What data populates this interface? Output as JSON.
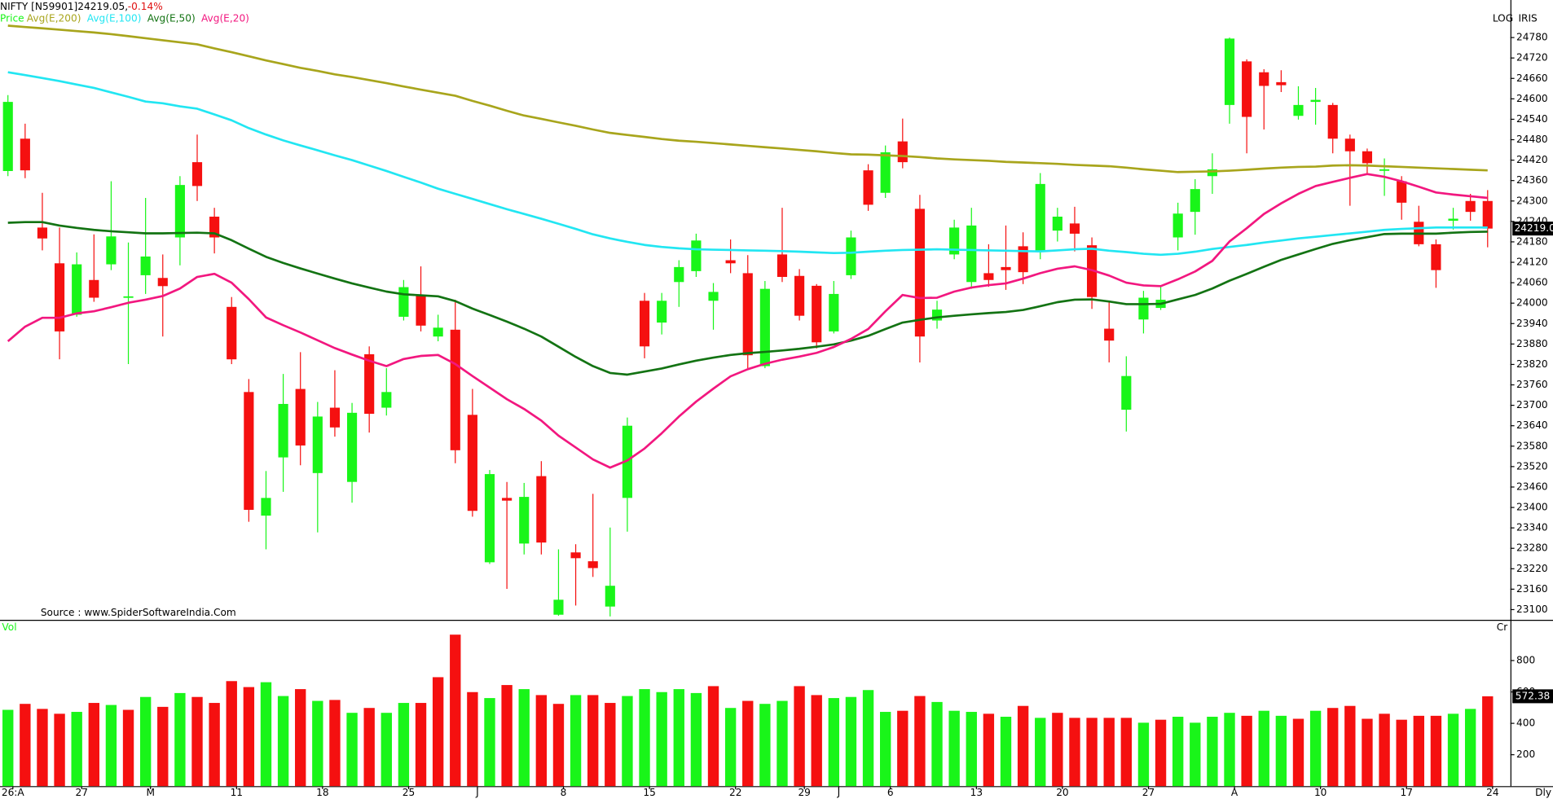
{
  "chart_data": {
    "type": "candlestick",
    "title": "NIFTY [N59901]24219.05,",
    "change": "-0.14%",
    "price_label": "Price",
    "scale_label": "LOG",
    "scale_name": "IRIS",
    "period": "Dly",
    "source": "Source : www.SpiderSoftwareIndia.Com",
    "last_price_label": "24219.0",
    "up_color": "#19f519",
    "down_color": "#f51010",
    "categories": [
      "26:A",
      null,
      null,
      null,
      "27",
      null,
      null,
      null,
      "M",
      null,
      null,
      null,
      null,
      "11",
      null,
      null,
      null,
      null,
      "18",
      null,
      null,
      null,
      null,
      "25",
      null,
      null,
      null,
      "J",
      null,
      null,
      null,
      null,
      "8",
      null,
      null,
      null,
      null,
      "15",
      null,
      null,
      null,
      null,
      "22",
      null,
      null,
      null,
      "29",
      null,
      "J",
      null,
      null,
      "6",
      null,
      null,
      null,
      null,
      "13",
      null,
      null,
      null,
      null,
      "20",
      null,
      null,
      null,
      null,
      "27",
      null,
      null,
      null,
      null,
      "A",
      null,
      null,
      null,
      null,
      "10",
      null,
      null,
      null,
      null,
      "17",
      null,
      null,
      null,
      null,
      "24"
    ],
    "open": [
      24388,
      24483,
      24222,
      24117,
      23966,
      24068,
      24114,
      24019,
      24082,
      24074,
      24193,
      24414,
      24254,
      23989,
      23739,
      23376,
      23547,
      23748,
      23501,
      23693,
      23475,
      23850,
      23693,
      23960,
      24024,
      23902,
      23922,
      23672,
      23239,
      23428,
      23294,
      23492,
      23085,
      23268,
      23242,
      23109,
      23428,
      24007,
      23943,
      24062,
      24094,
      24007,
      24126,
      24088,
      23815,
      24143,
      24080,
      24051,
      23917,
      24082,
      24390,
      24324,
      24475,
      24277,
      23949,
      24143,
      24062,
      24088,
      24106,
      24167,
      24152,
      24213,
      24234,
      24170,
      23925,
      23687,
      23952,
      23986,
      24193,
      24268,
      24373,
      24582,
      24710,
      24678,
      24649,
      24550,
      24591,
      24582,
      24483,
      24446,
      24390,
      24358,
      24239,
      24173,
      24242,
      24300,
      24300
    ],
    "high": [
      24611,
      24527,
      24324,
      24222,
      24149,
      24202,
      24358,
      24178,
      24309,
      24143,
      24373,
      24495,
      24280,
      24018,
      23777,
      23507,
      23792,
      23856,
      23710,
      23803,
      23707,
      23873,
      23809,
      24068,
      24108,
      23966,
      24010,
      23748,
      23510,
      23475,
      23472,
      23536,
      23277,
      23292,
      23440,
      23341,
      23664,
      24030,
      24030,
      24126,
      24204,
      24059,
      24187,
      24141,
      24065,
      24280,
      24100,
      24056,
      24065,
      24213,
      24408,
      24463,
      24542,
      24318,
      24007,
      24245,
      24280,
      24173,
      24228,
      24208,
      24382,
      24280,
      24283,
      24193,
      24007,
      23844,
      24036,
      24053,
      24295,
      24364,
      24440,
      24780,
      24716,
      24687,
      24684,
      24637,
      24632,
      24588,
      24495,
      24454,
      24425,
      24373,
      24286,
      24187,
      24280,
      24321,
      24332
    ],
    "low": [
      24373,
      24367,
      24155,
      23835,
      23960,
      24004,
      24097,
      23821,
      24027,
      23902,
      24111,
      24300,
      24146,
      23821,
      23358,
      23277,
      23446,
      23524,
      23327,
      23608,
      23414,
      23620,
      23670,
      23949,
      23917,
      23888,
      23530,
      23373,
      23234,
      23161,
      23262,
      23262,
      23082,
      23112,
      23196,
      23080,
      23329,
      23838,
      23908,
      23989,
      24077,
      23922,
      24088,
      23809,
      23809,
      24062,
      23949,
      23867,
      23911,
      24071,
      24271,
      24309,
      24396,
      23826,
      23925,
      24129,
      24042,
      24048,
      24039,
      24056,
      24129,
      24181,
      24152,
      23983,
      23826,
      23623,
      23911,
      23980,
      24155,
      24201,
      24321,
      24527,
      24440,
      24510,
      24620,
      24539,
      24524,
      24440,
      24286,
      24382,
      24315,
      24245,
      24167,
      24045,
      24216,
      24242,
      24164
    ],
    "close": [
      24591,
      24390,
      24190,
      23917,
      24114,
      24016,
      24196,
      24020,
      24137,
      24050,
      24347,
      24344,
      24193,
      23835,
      23393,
      23428,
      23704,
      23582,
      23667,
      23635,
      23678,
      23675,
      23739,
      24047,
      23934,
      23928,
      23568,
      23390,
      23498,
      23420,
      23431,
      23297,
      23129,
      23251,
      23222,
      23170,
      23640,
      23873,
      24007,
      24106,
      24184,
      24033,
      24117,
      23847,
      24042,
      24077,
      23963,
      23885,
      24027,
      24193,
      24289,
      24443,
      24414,
      23902,
      23981,
      24222,
      24228,
      24068,
      24097,
      24091,
      24350,
      24254,
      24204,
      24018,
      23890,
      23786,
      24016,
      24010,
      24263,
      24335,
      24393,
      24777,
      24547,
      24638,
      24640,
      24582,
      24597,
      24483,
      24446,
      24411,
      24393,
      24295,
      24173,
      24097,
      24248,
      24268,
      24219
    ],
    "series": [
      {
        "name": "Avg(E,200)",
        "color": "#a8a51c",
        "values": [
          24815,
          24811,
          24807,
          24803,
          24799,
          24795,
          24790,
          24784,
          24778,
          24772,
          24766,
          24760,
          24748,
          24737,
          24725,
          24713,
          24702,
          24691,
          24682,
          24672,
          24664,
          24655,
          24646,
          24636,
          24627,
          24618,
          24609,
          24594,
          24580,
          24565,
          24551,
          24541,
          24531,
          24521,
          24510,
          24500,
          24494,
          24488,
          24482,
          24477,
          24474,
          24470,
          24466,
          24462,
          24458,
          24454,
          24450,
          24446,
          24441,
          24437,
          24436,
          24434,
          24432,
          24429,
          24425,
          24422,
          24420,
          24418,
          24415,
          24413,
          24411,
          24409,
          24406,
          24404,
          24402,
          24398,
          24393,
          24389,
          24385,
          24386,
          24387,
          24389,
          24392,
          24395,
          24398,
          24400,
          24401,
          24404,
          24405,
          24404,
          24402,
          24400,
          24398,
          24396,
          24394,
          24392,
          24390
        ]
      },
      {
        "name": "Avg(E,100)",
        "color": "#22e6f2",
        "values": [
          24678,
          24670,
          24661,
          24652,
          24642,
          24632,
          24619,
          24606,
          24592,
          24587,
          24578,
          24571,
          24554,
          24537,
          24514,
          24495,
          24478,
          24463,
          24449,
          24434,
          24420,
          24404,
          24388,
          24371,
          24354,
          24336,
          24321,
          24306,
          24291,
          24276,
          24262,
          24248,
          24233,
          24218,
          24202,
          24190,
          24180,
          24171,
          24165,
          24161,
          24158,
          24157,
          24156,
          24155,
          24154,
          24153,
          24151,
          24149,
          24147,
          24148,
          24151,
          24154,
          24156,
          24157,
          24158,
          24157,
          24156,
          24155,
          24154,
          24153,
          24152,
          24155,
          24158,
          24160,
          24154,
          24150,
          24145,
          24142,
          24145,
          24151,
          24159,
          24165,
          24171,
          24178,
          24184,
          24190,
          24195,
          24200,
          24205,
          24210,
          24215,
          24218,
          24220,
          24222,
          24222,
          24222,
          24222
        ]
      },
      {
        "name": "Avg(E,50)",
        "color": "#137313",
        "values": [
          24236,
          24238,
          24238,
          24228,
          24221,
          24215,
          24211,
          24208,
          24205,
          24205,
          24206,
          24207,
          24205,
          24185,
          24160,
          24136,
          24118,
          24102,
          24087,
          24072,
          24058,
          24046,
          24034,
          24026,
          24023,
          24020,
          24006,
          23984,
          23965,
          23946,
          23925,
          23902,
          23872,
          23842,
          23815,
          23795,
          23790,
          23799,
          23808,
          23820,
          23831,
          23840,
          23848,
          23853,
          23857,
          23861,
          23866,
          23872,
          23879,
          23890,
          23904,
          23924,
          23943,
          23951,
          23958,
          23963,
          23967,
          23971,
          23974,
          23980,
          23991,
          24003,
          24010,
          24011,
          24005,
          23997,
          23997,
          23998,
          24011,
          24024,
          24043,
          24066,
          24086,
          24107,
          24127,
          24143,
          24159,
          24174,
          24185,
          24194,
          24203,
          24204,
          24204,
          24204,
          24207,
          24209,
          24210
        ]
      },
      {
        "name": "Avg(E,20)",
        "color": "#f2177f",
        "values": [
          23888,
          23931,
          23957,
          23957,
          23970,
          23976,
          23988,
          24001,
          24010,
          24021,
          24043,
          24077,
          24086,
          24060,
          24012,
          23958,
          23935,
          23914,
          23891,
          23868,
          23849,
          23831,
          23815,
          23836,
          23845,
          23848,
          23821,
          23786,
          23752,
          23718,
          23689,
          23655,
          23611,
          23576,
          23541,
          23517,
          23538,
          23573,
          23618,
          23667,
          23711,
          23749,
          23785,
          23806,
          23822,
          23834,
          23843,
          23854,
          23871,
          23895,
          23924,
          23976,
          24024,
          24015,
          24016,
          24034,
          24046,
          24053,
          24058,
          24072,
          24088,
          24101,
          24108,
          24097,
          24081,
          24060,
          24052,
          24050,
          24070,
          24093,
          24124,
          24181,
          24220,
          24262,
          24293,
          24321,
          24344,
          24356,
          24368,
          24379,
          24371,
          24358,
          24342,
          24325,
          24319,
          24314,
          24309
        ]
      }
    ],
    "ylim": [
      23073,
      24867
    ],
    "yticks": [
      23100,
      23160,
      23220,
      23280,
      23340,
      23400,
      23460,
      23520,
      23580,
      23640,
      23700,
      23760,
      23820,
      23880,
      23940,
      24000,
      24060,
      24120,
      24180,
      24240,
      24300,
      24360,
      24420,
      24480,
      24540,
      24600,
      24660,
      24720,
      24780
    ],
    "volume": {
      "label": "Vol",
      "unit": "Cr",
      "last_label": "572.38",
      "values": [
        486,
        524,
        492,
        461,
        473,
        530,
        517,
        486,
        568,
        505,
        593,
        568,
        530,
        669,
        631,
        662,
        574,
        618,
        543,
        549,
        467,
        498,
        467,
        530,
        530,
        694,
        965,
        599,
        561,
        644,
        618,
        580,
        524,
        580,
        580,
        530,
        574,
        618,
        599,
        618,
        593,
        637,
        498,
        543,
        524,
        543,
        637,
        580,
        561,
        568,
        612,
        473,
        480,
        574,
        536,
        480,
        473,
        461,
        442,
        511,
        435,
        467,
        435,
        435,
        435,
        435,
        404,
        423,
        442,
        404,
        442,
        467,
        448,
        480,
        448,
        429,
        480,
        498,
        511,
        429,
        461,
        423,
        448,
        448,
        461,
        492,
        572.38
      ],
      "ylim": [
        0,
        1047
      ],
      "yticks": [
        200,
        400,
        600,
        800
      ]
    }
  }
}
